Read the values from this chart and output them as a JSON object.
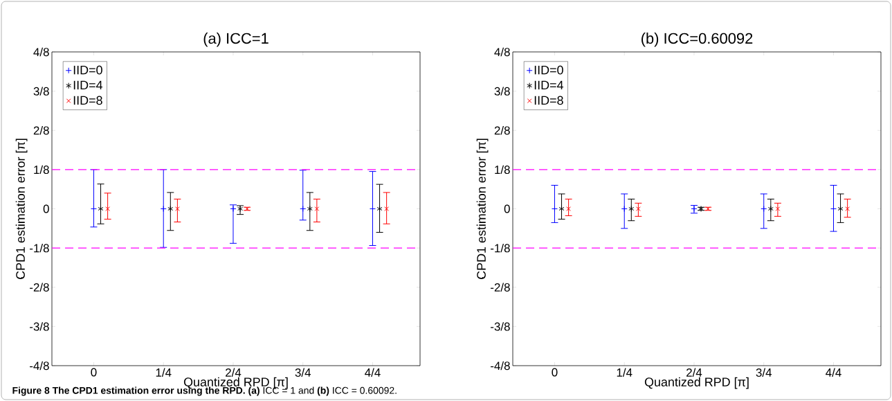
{
  "chart_data": [
    {
      "type": "scatter",
      "title": "(a) ICC=1",
      "xlabel": "Quantized RPD [π]",
      "ylabel": "CPD1 estimation error [π]",
      "xlim": [
        -0.15,
        1.17
      ],
      "xticks": [
        0,
        {
          "value": 0.25,
          "label": "1/4"
        },
        {
          "value": 0.5,
          "label": "2/4"
        },
        {
          "value": 0.75,
          "label": "3/4"
        },
        {
          "value": 1,
          "label": "4/4"
        }
      ],
      "ylim": [
        -0.5,
        0.5
      ],
      "yticks": [
        {
          "value": -0.5,
          "label": "-4/8"
        },
        {
          "value": -0.375,
          "label": "-3/8"
        },
        {
          "value": -0.25,
          "label": "-2/8"
        },
        {
          "value": -0.125,
          "label": "-1/8"
        },
        0,
        {
          "value": 0.125,
          "label": "1/8"
        },
        {
          "value": 0.25,
          "label": "2/8"
        },
        {
          "value": 0.375,
          "label": "3/8"
        },
        {
          "value": 0.5,
          "label": "4/8"
        }
      ],
      "legend": "top left",
      "grid": false,
      "ref_lines": [
        {
          "axis": "y",
          "value": 0.125,
          "color": "#ff00ff",
          "line_style": "dashed"
        },
        {
          "axis": "y",
          "value": -0.125,
          "color": "#ff00ff",
          "line_style": "dashed"
        }
      ],
      "series": [
        {
          "name": "IID=0",
          "color": "#0000ff",
          "marker": "plus",
          "x": [
            0,
            0.25,
            0.5,
            0.75,
            1
          ],
          "values": [
            0,
            0,
            0,
            0,
            0
          ],
          "errors": [
            [
              -0.058,
              0.125
            ],
            [
              -0.123,
              0.125
            ],
            [
              -0.11,
              0.0125
            ],
            [
              -0.036,
              0.123
            ],
            [
              -0.117,
              0.119
            ]
          ]
        },
        {
          "name": "IID=4",
          "color": "#000000",
          "x": [
            0.025,
            0.275,
            0.525,
            0.775,
            1.025
          ],
          "values": [
            0,
            0,
            0,
            0,
            0
          ],
          "errors": [
            [
              -0.048,
              0.079
            ],
            [
              -0.069,
              0.052
            ],
            [
              -0.018,
              0.01
            ],
            [
              -0.069,
              0.052
            ],
            [
              -0.075,
              0.078
            ]
          ]
        },
        {
          "name": "IID=8",
          "color": "#ff0000",
          "marker": "cross",
          "x": [
            0.05,
            0.3,
            0.55,
            0.8,
            1.05
          ],
          "values": [
            0,
            0,
            0,
            0,
            0
          ],
          "errors": [
            [
              -0.033,
              0.05
            ],
            [
              -0.042,
              0.031
            ],
            [
              -0.005,
              0.005
            ],
            [
              -0.042,
              0.031
            ],
            [
              -0.048,
              0.052
            ]
          ]
        }
      ],
      "annotations": [
        "**Figure 8 The CPD1 estimation error using the RPD. (a)** ICC = 1 and **(b)** ICC = 0.60092."
      ]
    },
    {
      "type": "scatter",
      "title": "(b) ICC=0.60092",
      "xlabel": "Quantized RPD [π]",
      "ylabel": "CPD1 estimation error [π]",
      "xlim": [
        -0.15,
        1.17
      ],
      "xticks": [
        0,
        {
          "value": 0.25,
          "label": "1/4"
        },
        {
          "value": 0.5,
          "label": "2/4"
        },
        {
          "value": 0.75,
          "label": "3/4"
        },
        {
          "value": 1,
          "label": "4/4"
        }
      ],
      "ylim": [
        -0.5,
        0.5
      ],
      "yticks": [
        {
          "value": -0.5,
          "label": "-4/8"
        },
        {
          "value": -0.375,
          "label": "-3/8"
        },
        {
          "value": -0.25,
          "label": "-2/8"
        },
        {
          "value": -0.125,
          "label": "-1/8"
        },
        0,
        {
          "value": 0.125,
          "label": "1/8"
        },
        {
          "value": 0.25,
          "label": "2/8"
        },
        {
          "value": 0.375,
          "label": "3/8"
        },
        {
          "value": 0.5,
          "label": "4/8"
        }
      ],
      "legend": "top left",
      "grid": false,
      "ref_lines": [
        {
          "axis": "y",
          "value": 0.125,
          "color": "#ff00ff",
          "line_style": "dashed"
        },
        {
          "axis": "y",
          "value": -0.125,
          "color": "#ff00ff",
          "line_style": "dashed"
        }
      ],
      "series": [
        {
          "name": "IID=0",
          "color": "#0000ff",
          "marker": "plus",
          "x": [
            0,
            0.25,
            0.5,
            0.75,
            1
          ],
          "values": [
            0,
            0,
            0,
            0,
            0
          ],
          "errors": [
            [
              -0.044,
              0.075
            ],
            [
              -0.0625,
              0.0475
            ],
            [
              -0.014,
              0.011
            ],
            [
              -0.0625,
              0.0475
            ],
            [
              -0.072,
              0.075
            ]
          ]
        },
        {
          "name": "IID=4",
          "color": "#000000",
          "x": [
            0.025,
            0.275,
            0.525,
            0.775,
            1.025
          ],
          "values": [
            0,
            0,
            0,
            0,
            0
          ],
          "errors": [
            [
              -0.033,
              0.0475
            ],
            [
              -0.038,
              0.031
            ],
            [
              -0.005,
              0.005
            ],
            [
              -0.038,
              0.031
            ],
            [
              -0.044,
              0.0475
            ]
          ]
        },
        {
          "name": "IID=8",
          "color": "#ff0000",
          "marker": "cross",
          "x": [
            0.05,
            0.3,
            0.55,
            0.8,
            1.05
          ],
          "values": [
            0,
            0,
            0,
            0,
            0
          ],
          "errors": [
            [
              -0.022,
              0.031
            ],
            [
              -0.024,
              0.018
            ],
            [
              -0.005,
              0.005
            ],
            [
              -0.024,
              0.018
            ],
            [
              -0.027,
              0.031
            ]
          ]
        }
      ]
    }
  ]
}
